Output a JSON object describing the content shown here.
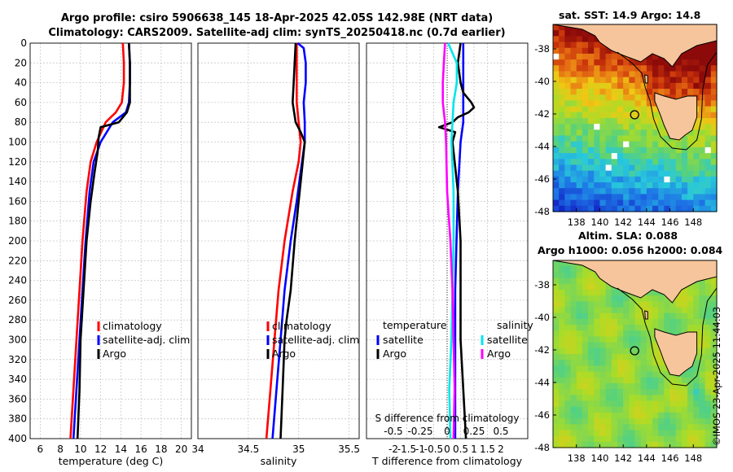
{
  "title": {
    "line1": "Argo profile: csiro 5906638_145 18-Apr-2025 42.05S 142.98E (NRT data)",
    "line2": "Climatology: CARS2009. Satellite-adj clim: synTS_20250418.nc (0.7d earlier)"
  },
  "maps": {
    "sst_title": "sat. SST: 14.9 Argo: 14.8",
    "sla_title_line1": "Altim. SLA: 0.088",
    "sla_title_line2": "Argo h1000: 0.056 h2000: 0.084",
    "lon_ticks": [
      "138",
      "140",
      "142",
      "144",
      "146",
      "148"
    ],
    "lat_ticks": [
      "-38",
      "-40",
      "-42",
      "-44",
      "-46",
      "-48"
    ],
    "profile_position": {
      "lon": 142.98,
      "lat": -42.05
    },
    "land_color": "#f6c59b"
  },
  "credit": "©IMOS 23-Apr-2025 11:44:03",
  "chart_data": [
    {
      "type": "line",
      "title": "",
      "xlabel": "temperature (deg C)",
      "ylabel": "",
      "xlim": [
        5,
        21
      ],
      "ylim": [
        400,
        0
      ],
      "xticks": [
        "6",
        "8",
        "10",
        "12",
        "14",
        "16",
        "18",
        "20"
      ],
      "yticks": [
        "0",
        "20",
        "40",
        "60",
        "80",
        "100",
        "120",
        "140",
        "160",
        "180",
        "200",
        "220",
        "240",
        "260",
        "280",
        "300",
        "320",
        "340",
        "360",
        "380",
        "400"
      ],
      "grid": true,
      "legend": [
        "climatology",
        "satellite-adj. clim",
        "Argo"
      ],
      "legend_position": "lower-right",
      "series": [
        {
          "name": "climatology",
          "color": "#ff0000",
          "depth": [
            0,
            20,
            40,
            60,
            70,
            80,
            100,
            120,
            150,
            200,
            250,
            300,
            350,
            400
          ],
          "values": [
            14.2,
            14.3,
            14.3,
            14.1,
            13.5,
            12.5,
            11.6,
            11.0,
            10.6,
            10.2,
            9.9,
            9.6,
            9.3,
            9.0
          ]
        },
        {
          "name": "satellite-adj. clim",
          "color": "#0000ff",
          "depth": [
            0,
            20,
            40,
            60,
            70,
            80,
            100,
            120,
            150,
            200,
            250,
            300,
            350,
            400
          ],
          "values": [
            14.8,
            14.9,
            14.9,
            14.8,
            14.5,
            13.2,
            12.0,
            11.3,
            10.9,
            10.5,
            10.2,
            9.9,
            9.6,
            9.3
          ]
        },
        {
          "name": "Argo",
          "color": "#000000",
          "depth": [
            0,
            20,
            40,
            60,
            70,
            80,
            85,
            95,
            110,
            130,
            160,
            200,
            250,
            300,
            350,
            400
          ],
          "values": [
            14.8,
            14.9,
            14.9,
            14.9,
            14.6,
            13.8,
            12.0,
            11.8,
            11.7,
            11.4,
            11.0,
            10.6,
            10.3,
            10.0,
            9.9,
            9.7
          ]
        }
      ]
    },
    {
      "type": "line",
      "title": "",
      "xlabel": "salinity",
      "ylabel": "",
      "xlim": [
        34.0,
        35.6
      ],
      "ylim": [
        400,
        0
      ],
      "xticks": [
        "34",
        "34.5",
        "35",
        "35.5"
      ],
      "yticks": [],
      "grid": true,
      "legend": [
        "climatology",
        "satellite-adj. clim",
        "Argo"
      ],
      "legend_position": "lower-right",
      "series": [
        {
          "name": "climatology",
          "color": "#ff0000",
          "depth": [
            0,
            20,
            40,
            60,
            80,
            100,
            120,
            150,
            200,
            250,
            300,
            350,
            400
          ],
          "values": [
            34.98,
            34.98,
            34.98,
            34.98,
            35.0,
            35.02,
            35.0,
            34.94,
            34.86,
            34.8,
            34.76,
            34.72,
            34.68
          ]
        },
        {
          "name": "satellite-adj. clim",
          "color": "#0000ff",
          "depth": [
            0,
            5,
            20,
            40,
            60,
            80,
            100,
            130,
            160,
            200,
            250,
            300,
            350,
            400
          ],
          "values": [
            34.99,
            35.05,
            35.07,
            35.07,
            35.05,
            35.06,
            35.06,
            35.02,
            34.98,
            34.92,
            34.86,
            34.82,
            34.78,
            34.74
          ]
        },
        {
          "name": "Argo",
          "color": "#000000",
          "depth": [
            0,
            20,
            40,
            60,
            80,
            90,
            100,
            130,
            160,
            200,
            250,
            280,
            300,
            350,
            400
          ],
          "values": [
            34.97,
            34.96,
            34.95,
            34.94,
            34.97,
            35.02,
            35.06,
            35.03,
            35.0,
            34.96,
            34.92,
            34.88,
            34.86,
            34.84,
            34.82
          ]
        }
      ]
    },
    {
      "type": "line",
      "title": "",
      "xlabel": "T difference from climatology",
      "ylabel": "",
      "xlim": [
        -3,
        3
      ],
      "ylim": [
        400,
        0
      ],
      "xticks": [
        "-2",
        "-1.5",
        "-1",
        "-0.5",
        "0",
        "0.5",
        "1",
        "1.5",
        "2"
      ],
      "secondary_xlabel": "S difference from climatology",
      "secondary_xticks": [
        "-0.5",
        "-0.25",
        "0",
        "0.25",
        "0.5"
      ],
      "secondary_xlim": [
        -0.75,
        0.75
      ],
      "yticks": [],
      "grid": true,
      "legend": [
        "temperature satellite",
        "temperature Argo",
        "salinity satellite",
        "salinity Argo"
      ],
      "legend_position": "lower-center",
      "series": [
        {
          "name": "temperature satellite",
          "color": "#0000ff",
          "depth": [
            0,
            20,
            40,
            60,
            80,
            100,
            150,
            200,
            250,
            300,
            350,
            400
          ],
          "values": [
            0.6,
            0.6,
            0.6,
            0.6,
            0.6,
            0.5,
            0.4,
            0.35,
            0.3,
            0.3,
            0.3,
            0.3
          ]
        },
        {
          "name": "temperature Argo",
          "color": "#000000",
          "depth": [
            0,
            20,
            40,
            50,
            60,
            65,
            70,
            75,
            80,
            85,
            90,
            100,
            150,
            200,
            250,
            300,
            350,
            400
          ],
          "values": [
            0.5,
            0.4,
            0.5,
            0.6,
            0.9,
            1.0,
            0.8,
            0.4,
            0.2,
            -0.3,
            0.3,
            0.2,
            0.4,
            0.5,
            0.5,
            0.5,
            0.6,
            0.7
          ]
        },
        {
          "name": "salinity satellite",
          "color": "#00e5ee",
          "depth": [
            0,
            20,
            40,
            60,
            80,
            100,
            150,
            200,
            250,
            300,
            350,
            400
          ],
          "values": [
            0.01,
            0.09,
            0.09,
            0.06,
            0.05,
            0.04,
            0.06,
            0.06,
            0.05,
            0.04,
            0.02,
            0.03
          ]
        },
        {
          "name": "salinity Argo",
          "color": "#ff00ff",
          "depth": [
            0,
            20,
            40,
            60,
            80,
            100,
            150,
            200,
            250,
            300,
            350,
            400
          ],
          "values": [
            -0.02,
            -0.03,
            -0.04,
            -0.04,
            -0.02,
            -0.01,
            0.0,
            0.03,
            0.05,
            0.06,
            0.07,
            0.06
          ]
        }
      ]
    }
  ]
}
